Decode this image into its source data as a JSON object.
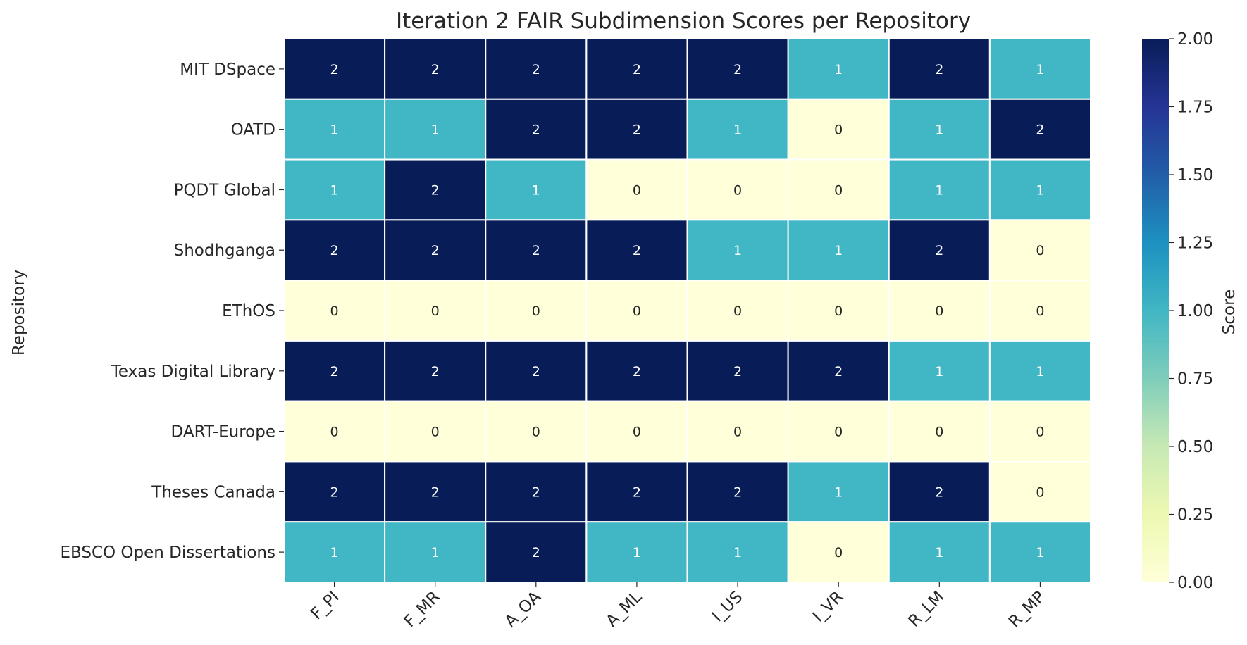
{
  "chart_data": {
    "type": "heatmap",
    "title": "Iteration 2 FAIR Subdimension Scores per Repository",
    "ylabel": "Repository",
    "xlabel": "",
    "x": [
      "F_PI",
      "F_MR",
      "A_OA",
      "A_ML",
      "I_US",
      "I_VR",
      "R_LM",
      "R_MP"
    ],
    "y": [
      "MIT DSpace",
      "OATD",
      "PQDT Global",
      "Shodhganga",
      "EThOS",
      "Texas Digital Library",
      "DART-Europe",
      "Theses Canada",
      "EBSCO Open Dissertations"
    ],
    "values": [
      [
        2,
        2,
        2,
        2,
        2,
        1,
        2,
        1
      ],
      [
        1,
        1,
        2,
        2,
        1,
        0,
        1,
        2
      ],
      [
        1,
        2,
        1,
        0,
        0,
        0,
        1,
        1
      ],
      [
        2,
        2,
        2,
        2,
        1,
        1,
        2,
        0
      ],
      [
        0,
        0,
        0,
        0,
        0,
        0,
        0,
        0
      ],
      [
        2,
        2,
        2,
        2,
        2,
        2,
        1,
        1
      ],
      [
        0,
        0,
        0,
        0,
        0,
        0,
        0,
        0
      ],
      [
        2,
        2,
        2,
        2,
        2,
        1,
        2,
        0
      ],
      [
        1,
        1,
        2,
        1,
        1,
        0,
        1,
        1
      ]
    ],
    "colorbar": {
      "label": "Score",
      "range": [
        0,
        2
      ],
      "ticks": [
        "0.00",
        "0.25",
        "0.50",
        "0.75",
        "1.00",
        "1.25",
        "1.50",
        "1.75",
        "2.00"
      ],
      "colormap": "YlGnBu"
    },
    "colors": {
      "low": "#ffffd9",
      "mid": "#41b6c4",
      "high": "#081d58"
    },
    "annotations": "cell values shown in each cell"
  }
}
